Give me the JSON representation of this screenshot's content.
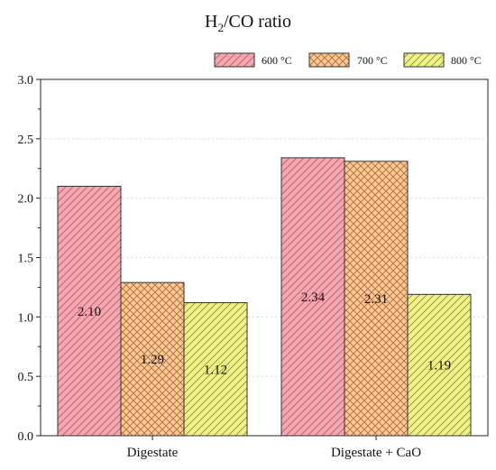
{
  "chart_data": {
    "type": "bar",
    "title_main": "H",
    "title_sub": "2",
    "title_rest": "/CO ratio",
    "categories": [
      "Digestate",
      "Digestate + CaO"
    ],
    "series": [
      {
        "name": "600 °C",
        "values": [
          2.1,
          2.34
        ],
        "labels": [
          "2.10",
          "2.34"
        ],
        "color": "#f4a6b1",
        "stroke": "#c45560",
        "pattern": "diag"
      },
      {
        "name": "700 °C",
        "values": [
          1.29,
          2.31
        ],
        "labels": [
          "1.29",
          "2.31"
        ],
        "color": "#f6c99a",
        "stroke": "#b5662b",
        "pattern": "cross"
      },
      {
        "name": "800 °C",
        "values": [
          1.12,
          1.19
        ],
        "labels": [
          "1.12",
          "1.19"
        ],
        "color": "#eef08a",
        "stroke": "#8f8f1e",
        "pattern": "diag"
      }
    ],
    "ylim": [
      0,
      3.0
    ],
    "yticks": [
      "0.0",
      "0.5",
      "1.0",
      "1.5",
      "2.0",
      "2.5",
      "3.0"
    ],
    "grid": true,
    "legend_position": "top-right"
  }
}
